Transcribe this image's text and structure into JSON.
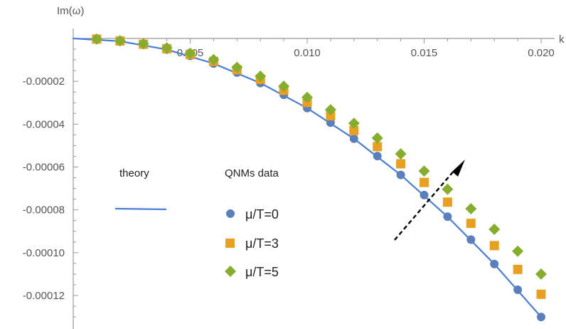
{
  "chart_data": {
    "type": "scatter",
    "xlabel": "k",
    "ylabel": "Im(ω)",
    "xlim": [
      0,
      0.02
    ],
    "ylim": [
      -0.000135,
      2.5e-06
    ],
    "x_ticks": [
      0.005,
      0.01,
      0.015,
      0.02
    ],
    "x_tick_labels": [
      "0.005",
      "0.010",
      "0.015",
      "0.020"
    ],
    "y_ticks": [
      -2e-05,
      -4e-05,
      -6e-05,
      -8e-05,
      -0.0001,
      -0.00012
    ],
    "y_tick_labels": [
      "-0.00002",
      "-0.00004",
      "-0.00006",
      "-0.00008",
      "-0.00010",
      "-0.00012"
    ],
    "grid": false,
    "legend": {
      "theory_heading": "theory",
      "data_heading": "QNMs data",
      "entries": [
        "μ/T=0",
        "μ/T=3",
        "μ/T=5"
      ]
    },
    "theory": {
      "name": "theory",
      "color": "#4a7fd4",
      "x": [
        0,
        0.002,
        0.004,
        0.006,
        0.008,
        0.01,
        0.012,
        0.014,
        0.016,
        0.018,
        0.02
      ],
      "values": [
        0,
        -1.3e-06,
        -5.2e-06,
        -1.17e-05,
        -2.08e-05,
        -3.25e-05,
        -4.68e-05,
        -6.37e-05,
        -8.32e-05,
        -0.0001053,
        -0.00013
      ]
    },
    "x": [
      0.001,
      0.002,
      0.003,
      0.004,
      0.005,
      0.006,
      0.007,
      0.008,
      0.009,
      0.01,
      0.011,
      0.012,
      0.013,
      0.014,
      0.015,
      0.016,
      0.017,
      0.018,
      0.019,
      0.02
    ],
    "series": [
      {
        "name": "μ/T=0",
        "marker": "circle",
        "color": "#5b7fba",
        "values": [
          -3e-07,
          -1.3e-06,
          -2.9e-06,
          -5.2e-06,
          -8.1e-06,
          -1.17e-05,
          -1.59e-05,
          -2.08e-05,
          -2.63e-05,
          -3.25e-05,
          -3.93e-05,
          -4.68e-05,
          -5.49e-05,
          -6.37e-05,
          -7.31e-05,
          -8.32e-05,
          -9.39e-05,
          -0.0001053,
          -0.0001173,
          -0.00013
        ]
      },
      {
        "name": "μ/T=3",
        "marker": "square",
        "color": "#e8a023",
        "values": [
          -3e-07,
          -1.2e-06,
          -2.7e-06,
          -4.8e-06,
          -7.5e-06,
          -1.07e-05,
          -1.46e-05,
          -1.91e-05,
          -2.42e-05,
          -2.99e-05,
          -3.61e-05,
          -4.3e-05,
          -5.05e-05,
          -5.85e-05,
          -6.72e-05,
          -7.64e-05,
          -8.63e-05,
          -9.67e-05,
          -0.0001078,
          -0.0001194
        ]
      },
      {
        "name": "μ/T=5",
        "marker": "diamond",
        "color": "#86ad2d",
        "values": [
          -3e-07,
          -1.1e-06,
          -2.5e-06,
          -4.4e-06,
          -6.9e-06,
          -9.9e-06,
          -1.35e-05,
          -1.76e-05,
          -2.23e-05,
          -2.75e-05,
          -3.33e-05,
          -3.96e-05,
          -4.65e-05,
          -5.39e-05,
          -6.19e-05,
          -7.04e-05,
          -7.95e-05,
          -8.91e-05,
          -9.93e-05,
          -0.00011
        ]
      }
    ]
  }
}
